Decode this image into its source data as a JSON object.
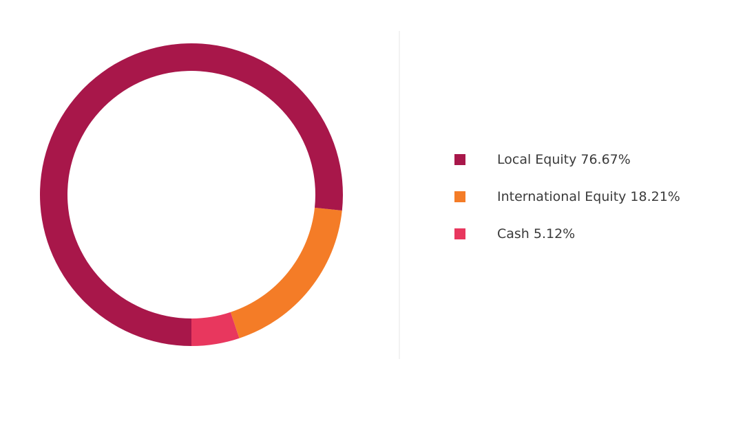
{
  "chart_data": {
    "type": "donut",
    "categories": [
      "Local Equity",
      "International Equity",
      "Cash"
    ],
    "values": [
      76.67,
      18.21,
      5.12
    ],
    "value_labels": [
      "76.67%",
      "18.21%",
      "5.12%"
    ],
    "colors": [
      "#a8174a",
      "#f47c27",
      "#e8375e"
    ],
    "start": "bottom",
    "direction": "counterclockwise"
  }
}
